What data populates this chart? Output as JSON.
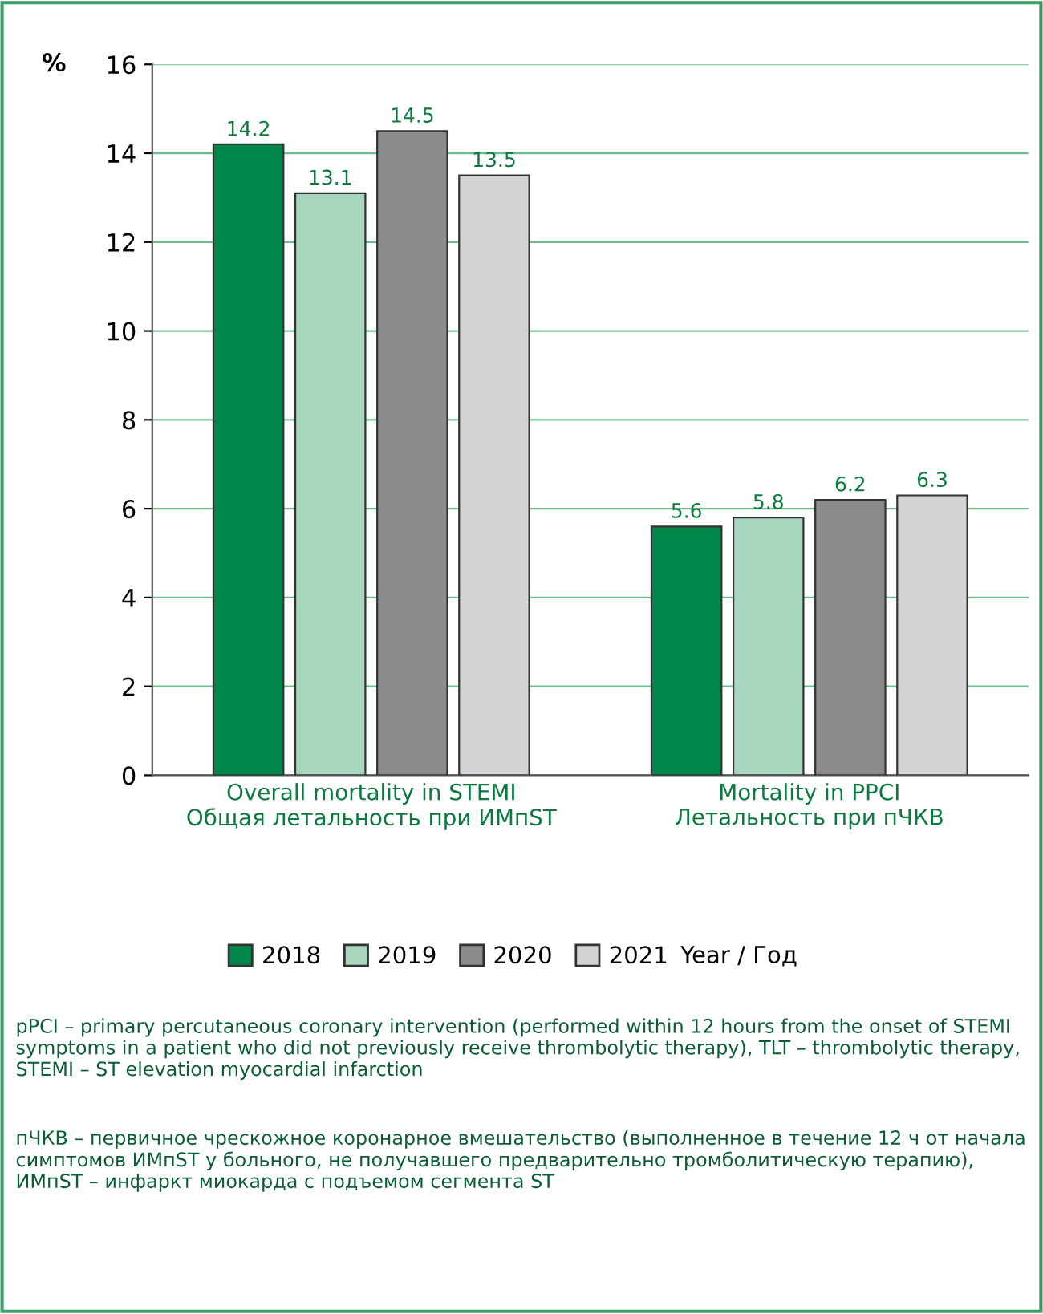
{
  "chart_data": {
    "type": "bar",
    "ylabel": "%",
    "legend_title": "Year / Год",
    "categories": [
      "Overall mortality in STEMI\nОбщая летальность при ИМпST",
      "Mortality in PPCI\nЛетальность при пЧКВ"
    ],
    "series": [
      {
        "name": "2018",
        "color": "#00884a",
        "values": [
          14.2,
          5.6
        ]
      },
      {
        "name": "2019",
        "color": "#a8d5be",
        "values": [
          13.1,
          5.8
        ]
      },
      {
        "name": "2020",
        "color": "#8c8c8f",
        "values": [
          14.5,
          6.2
        ]
      },
      {
        "name": "2021",
        "color": "#d4d4d6",
        "values": [
          13.5,
          6.3
        ]
      }
    ],
    "ylim": [
      0,
      16
    ],
    "yticks": [
      0,
      2,
      4,
      6,
      8,
      10,
      12,
      14,
      16
    ],
    "grid": "y",
    "legend": "bottom",
    "data_labels": true,
    "annotations": [
      "pPCI – primary percutaneous coronary intervention (performed within 12 hours from the onset of STEMI symptoms in a patient who did not previously receive thrombolytic therapy), TLT – thrombolytic therapy, STEMI – ST elevation myocardial infarction",
      "пЧКВ – первичное чрескожное коронарное вмешательство (выполненное в течение 12 ч от начала симптомов ИМпST у больного, не получавшего предварительно тромболитическую терапию), ИМпST – инфаркт миокарда с подъемом сегмента ST"
    ]
  }
}
